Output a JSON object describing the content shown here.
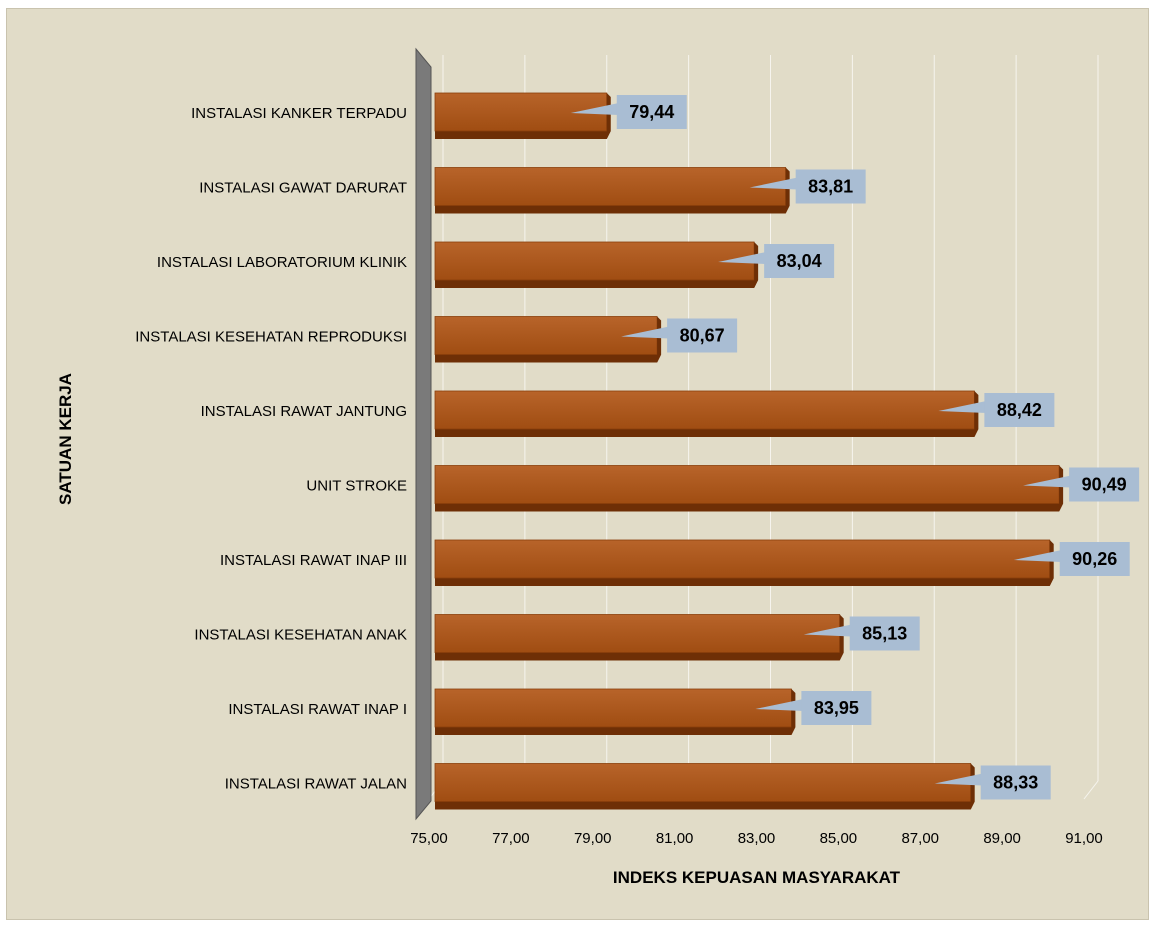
{
  "chart_data": {
    "type": "bar",
    "orientation": "horizontal",
    "categories": [
      "INSTALASI KANKER TERPADU",
      "INSTALASI GAWAT DARURAT",
      "INSTALASI LABORATORIUM KLINIK",
      "INSTALASI KESEHATAN REPRODUKSI",
      "INSTALASI RAWAT JANTUNG",
      "UNIT STROKE",
      "INSTALASI RAWAT INAP III",
      "INSTALASI KESEHATAN ANAK",
      "INSTALASI RAWAT INAP I",
      "INSTALASI RAWAT JALAN"
    ],
    "values": [
      79.44,
      83.81,
      83.04,
      80.67,
      88.42,
      90.49,
      90.26,
      85.13,
      83.95,
      88.33
    ],
    "data_labels": [
      "79,44",
      "83,81",
      "83,04",
      "80,67",
      "88,42",
      "90,49",
      "90,26",
      "85,13",
      "83,95",
      "88,33"
    ],
    "title": "",
    "xlabel": "INDEKS KEPUASAN MASYARAKAT",
    "ylabel": "SATUAN KERJA",
    "xlim": [
      75,
      91
    ],
    "x_ticks": [
      75,
      77,
      79,
      81,
      83,
      85,
      87,
      89,
      91
    ],
    "x_tick_labels": [
      "75,00",
      "77,00",
      "79,00",
      "81,00",
      "83,00",
      "85,00",
      "87,00",
      "89,00",
      "91,00"
    ],
    "grid": true,
    "legend": "none",
    "colors": {
      "background": "#e1dcc8",
      "bar_fill": "#a04d12",
      "bar_top": "#b8642a",
      "bar_side": "#6e2f06",
      "label_box": "#a9bdd3",
      "axis_wall": "#7a7a7a",
      "grid": "#ffffff"
    }
  }
}
